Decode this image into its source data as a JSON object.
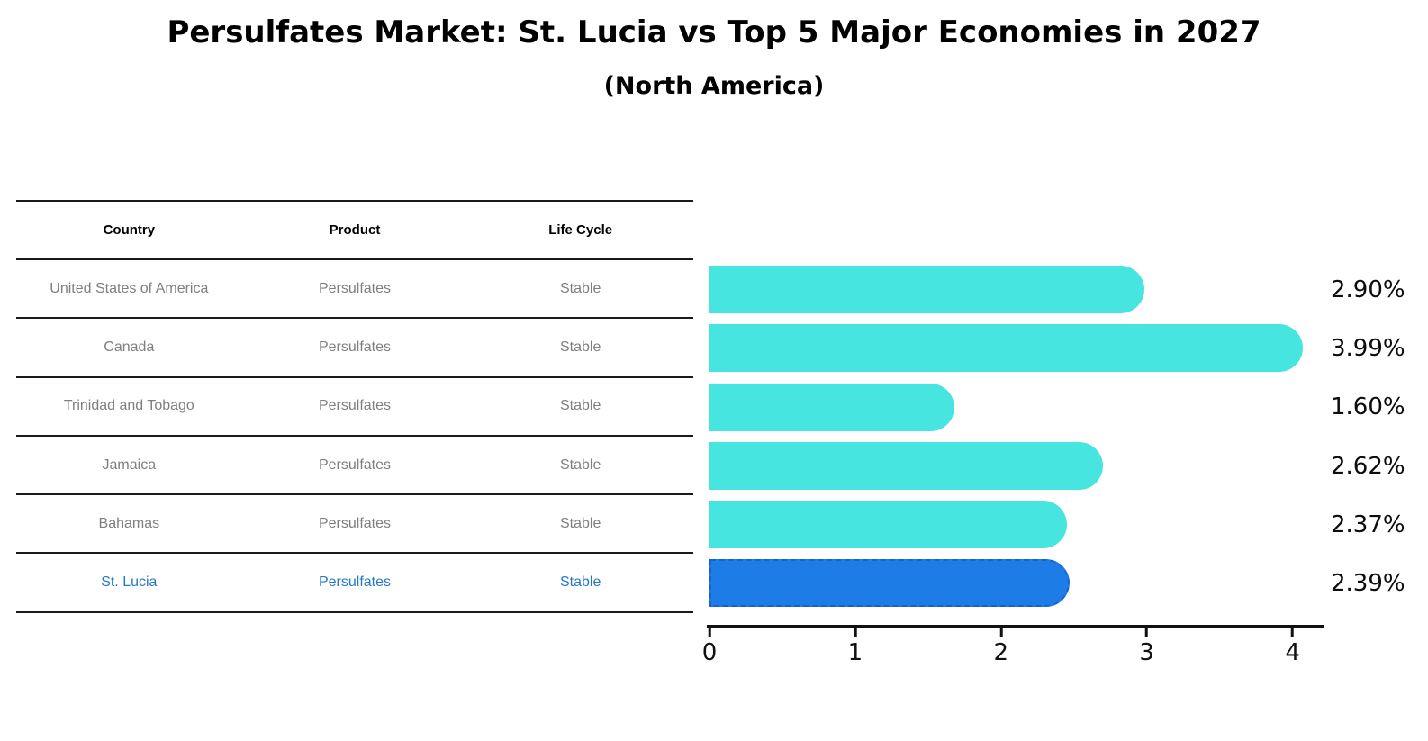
{
  "title": "Persulfates Market: St. Lucia vs Top 5 Major Economies in 2027",
  "subtitle": "(North America)",
  "table": {
    "headers": {
      "country": "Country",
      "product": "Product",
      "life_cycle": "Life Cycle"
    },
    "highlight_text_color": "#2878c8",
    "rows": [
      {
        "country": "United States of America",
        "product": "Persulfates",
        "life_cycle": "Stable",
        "highlight": false
      },
      {
        "country": "Canada",
        "product": "Persulfates",
        "life_cycle": "Stable",
        "highlight": false
      },
      {
        "country": "Trinidad and Tobago",
        "product": "Persulfates",
        "life_cycle": "Stable",
        "highlight": false
      },
      {
        "country": "Jamaica",
        "product": "Persulfates",
        "life_cycle": "Stable",
        "highlight": false
      },
      {
        "country": "Bahamas",
        "product": "Persulfates",
        "life_cycle": "Stable",
        "highlight": false
      },
      {
        "country": "St. Lucia",
        "product": "Persulfates",
        "life_cycle": "Stable",
        "highlight": true
      }
    ]
  },
  "chart_data": {
    "type": "bar",
    "orientation": "horizontal",
    "title": "Persulfates Market: St. Lucia vs Top 5 Major Economies in 2027",
    "subtitle": "(North America)",
    "categories": [
      "United States of America",
      "Canada",
      "Trinidad and Tobago",
      "Jamaica",
      "Bahamas",
      "St. Lucia"
    ],
    "values": [
      2.9,
      3.99,
      1.6,
      2.62,
      2.37,
      2.39
    ],
    "value_labels": [
      "2.90%",
      "3.99%",
      "1.60%",
      "2.62%",
      "2.37%",
      "2.39%"
    ],
    "xlim": [
      0,
      4.2
    ],
    "x_ticks": [
      "0",
      "1",
      "2",
      "3",
      "4"
    ],
    "grid": "off",
    "legend": "none",
    "bar_color": "#46e5e0",
    "highlight_bar_color": "#1e7ce6",
    "highlight_border_color": "#1663cf",
    "highlight_index": 5
  }
}
